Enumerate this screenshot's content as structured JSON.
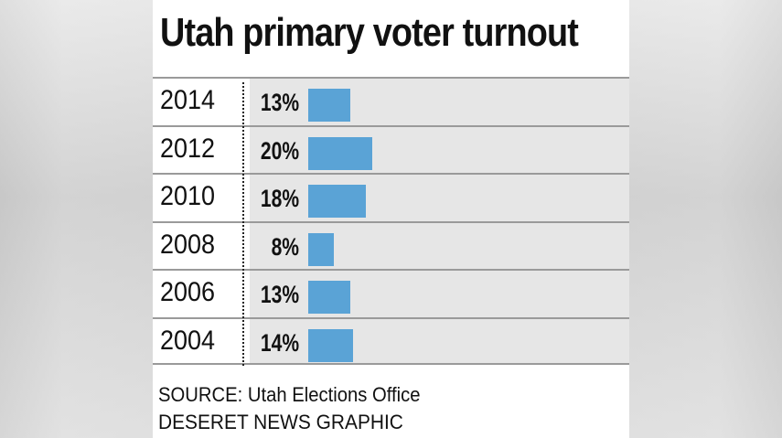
{
  "chart_data": {
    "type": "bar",
    "orientation": "horizontal",
    "title": "Utah primary voter turnout",
    "categories": [
      "2014",
      "2012",
      "2010",
      "2008",
      "2006",
      "2004"
    ],
    "values": [
      13,
      20,
      18,
      8,
      13,
      14
    ],
    "value_labels": [
      "13%",
      "20%",
      "18%",
      "8%",
      "13%",
      "14%"
    ],
    "bar_color": "#5aa3d6",
    "grid": false,
    "legend": "none"
  },
  "footer": {
    "source": "SOURCE: Utah Elections Office",
    "credit": "DESERET NEWS GRAPHIC"
  }
}
